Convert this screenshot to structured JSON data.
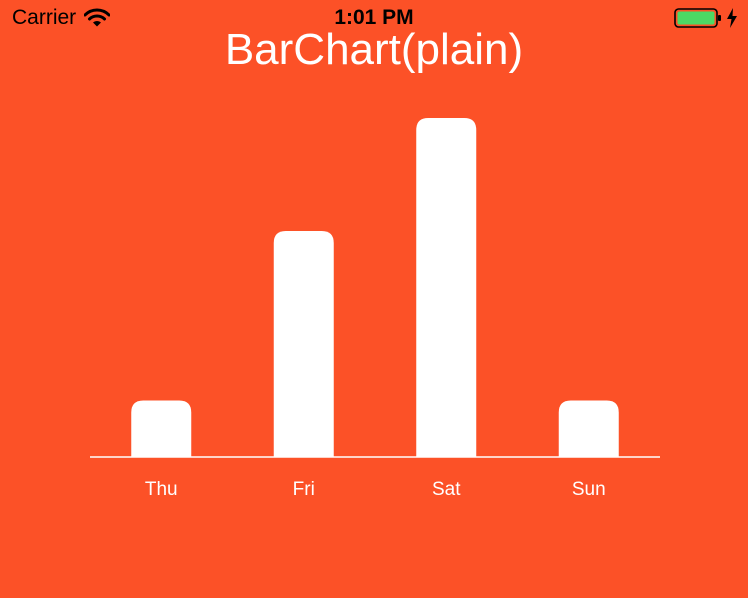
{
  "status_bar": {
    "carrier": "Carrier",
    "time": "1:01 PM",
    "icons": [
      "wifi-icon",
      "battery-icon",
      "charging-icon"
    ]
  },
  "title": "BarChart(plain)",
  "colors": {
    "background": "#FC5127",
    "bar": "#FFFFFF",
    "axis": "#FFFFFF",
    "battery_fill": "#4CD964"
  },
  "chart_data": {
    "type": "bar",
    "title": "BarChart(plain)",
    "categories": [
      "Thu",
      "Fri",
      "Sat",
      "Sun"
    ],
    "values": [
      1,
      4,
      6,
      1
    ],
    "ylim": [
      0,
      6
    ],
    "xlabel": "",
    "ylabel": "",
    "grid": false,
    "legend": "none"
  }
}
